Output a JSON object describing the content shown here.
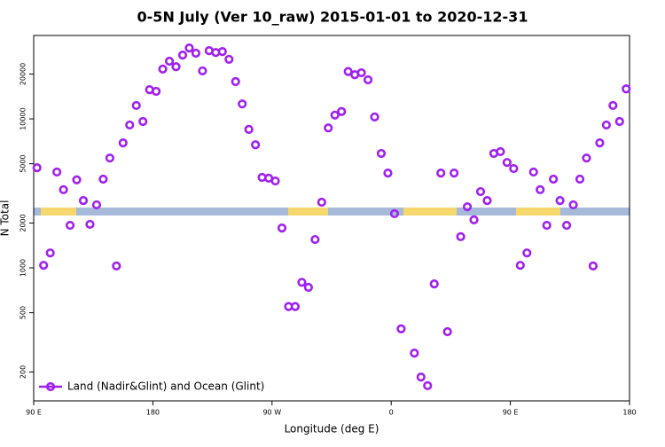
{
  "chart_data": {
    "type": "scatter",
    "title": "0-5N July (Ver 10_raw)   2015-01-01 to 2020-12-31",
    "xlabel": "Longitude (deg E)",
    "ylabel": "N Total",
    "log_y": true,
    "xlim": [
      90,
      540
    ],
    "xticks": [
      {
        "value": 90,
        "label": "90 E"
      },
      {
        "value": 180,
        "label": "180"
      },
      {
        "value": 270,
        "label": "90 W"
      },
      {
        "value": 360,
        "label": "0"
      },
      {
        "value": 450,
        "label": "90 E"
      },
      {
        "value": 540,
        "label": "180"
      }
    ],
    "ylim": [
      128,
      36300
    ],
    "yticks": [
      200,
      500,
      1000,
      2000,
      5000,
      10000,
      20000
    ],
    "legend_position": "bottom-left",
    "x": [
      92.5,
      97.5,
      102.5,
      107.5,
      112.5,
      117.5,
      122.5,
      127.5,
      132.5,
      137.5,
      142.5,
      147.5,
      152.5,
      157.5,
      162.5,
      167.5,
      172.5,
      177.5,
      182.5,
      187.5,
      192.5,
      197.5,
      202.5,
      207.5,
      212.5,
      217.5,
      222.5,
      227.5,
      232.5,
      237.5,
      242.5,
      247.5,
      252.5,
      257.5,
      262.5,
      267.5,
      272.5,
      277.5,
      282.5,
      287.5,
      292.5,
      297.5,
      302.5,
      307.5,
      312.5,
      317.5,
      322.5,
      327.5,
      332.5,
      337.5,
      342.5,
      347.5,
      352.5,
      357.5,
      362.5,
      367.5,
      372.5,
      377.5,
      382.5,
      387.5,
      392.5,
      397.5,
      402.5,
      407.5,
      412.5,
      417.5,
      422.5,
      427.5,
      432.5,
      437.5,
      442.5,
      447.5,
      452.5,
      457.5,
      462.5,
      467.5,
      472.5,
      477.5,
      482.5,
      487.5,
      492.5,
      497.5,
      502.5,
      507.5,
      512.5,
      517.5,
      522.5,
      527.5,
      532.5,
      537.5
    ],
    "series": [
      {
        "name": "Land (Nadir&Glint) and Ocean (Glint)",
        "color": "#a020f0",
        "values": [
          4700,
          1040,
          1260,
          4400,
          3350,
          1930,
          3900,
          2830,
          1960,
          2650,
          3940,
          5460,
          1030,
          6900,
          9100,
          12300,
          9600,
          15700,
          15300,
          21600,
          24400,
          22400,
          26800,
          29900,
          27600,
          21000,
          28700,
          27900,
          28300,
          25100,
          17800,
          12600,
          8500,
          6700,
          4050,
          4000,
          3830,
          1850,
          550,
          550,
          800,
          740,
          1550,
          2760,
          8700,
          10600,
          11200,
          20800,
          19800,
          20400,
          18300,
          10300,
          5860,
          4330,
          2310,
          390,
          null,
          268,
          185,
          162,
          780,
          4330,
          373,
          4330,
          1620,
          2570,
          2100,
          3250,
          2830,
          5860,
          6030,
          5100,
          4640,
          1040,
          1260,
          4400,
          3350,
          1930,
          3940,
          2830,
          1930,
          2650,
          3940,
          5460,
          1030,
          6900,
          9100,
          12300,
          9600,
          15900
        ]
      }
    ]
  }
}
